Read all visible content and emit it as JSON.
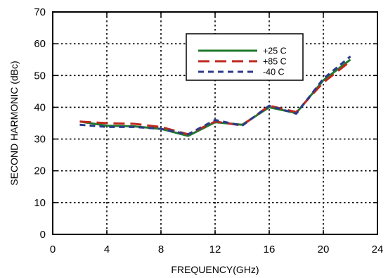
{
  "chart_data": {
    "type": "line",
    "xlabel": "FREQUENCY(GHz)",
    "ylabel": "SECOND HARMONIC (dBc)",
    "xlim": [
      0,
      24
    ],
    "ylim": [
      0,
      70
    ],
    "xticks": [
      0,
      4,
      8,
      12,
      16,
      20,
      24
    ],
    "yticks": [
      0,
      10,
      20,
      30,
      40,
      50,
      60,
      70
    ],
    "grid": true,
    "legend_position": "top-right",
    "series": [
      {
        "name": "+25 C",
        "color": "#1f7a2e",
        "style": "solid",
        "x": [
          2,
          4,
          6,
          8,
          10,
          12,
          14,
          16,
          18,
          20,
          22
        ],
        "y": [
          35.5,
          34.2,
          34.0,
          33.2,
          31.0,
          35.3,
          34.5,
          40.0,
          38.2,
          48.5,
          55.0
        ]
      },
      {
        "name": "+85 C",
        "color": "#c0281e",
        "style": "longdash",
        "x": [
          2,
          4,
          6,
          8,
          10,
          12,
          14,
          16,
          18,
          20,
          22
        ],
        "y": [
          35.5,
          35.0,
          34.8,
          33.8,
          31.5,
          35.5,
          34.3,
          40.5,
          38.5,
          47.8,
          54.5
        ]
      },
      {
        "name": "-40 C",
        "color": "#2b3a8c",
        "style": "shortdash",
        "x": [
          2,
          4,
          6,
          8,
          10,
          12,
          14,
          16,
          18,
          20,
          22
        ],
        "y": [
          34.5,
          33.8,
          33.8,
          33.2,
          31.5,
          36.0,
          34.2,
          40.5,
          38.0,
          49.0,
          56.0
        ]
      }
    ]
  }
}
